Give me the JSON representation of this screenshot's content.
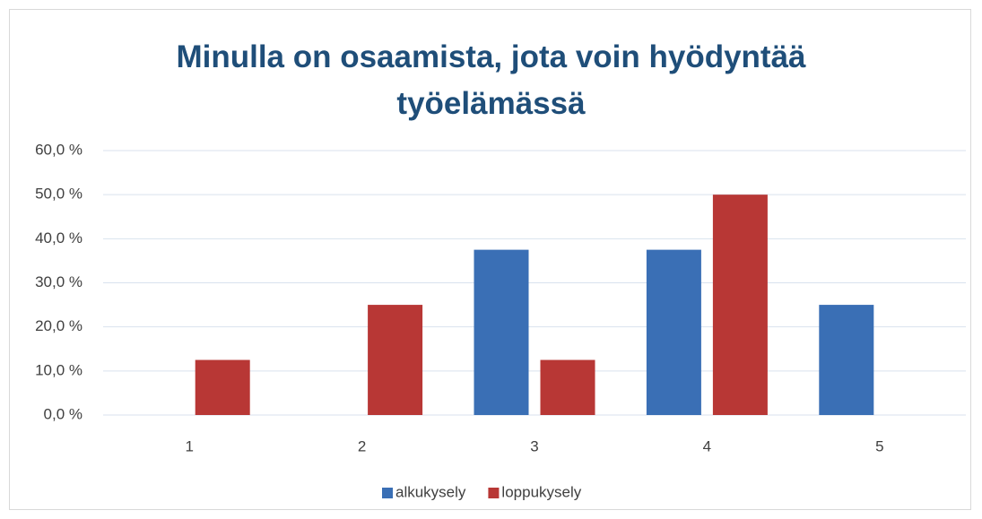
{
  "chart_data": {
    "type": "bar",
    "title": "Minulla on osaamista, jota voin hyödyntää työelämässä",
    "categories": [
      "1",
      "2",
      "3",
      "4",
      "5"
    ],
    "series": [
      {
        "name": "alkukysely",
        "color": "#3a6fb5",
        "values": [
          0,
          0,
          37.5,
          37.5,
          25
        ]
      },
      {
        "name": "loppukysely",
        "color": "#b83735",
        "values": [
          12.5,
          25,
          12.5,
          50,
          0
        ]
      }
    ],
    "ylim": [
      0,
      60
    ],
    "yticks": [
      {
        "value": 0,
        "label": "0,0 %"
      },
      {
        "value": 10,
        "label": "10,0 %"
      },
      {
        "value": 20,
        "label": "20,0 %"
      },
      {
        "value": 30,
        "label": "30,0 %"
      },
      {
        "value": 40,
        "label": "40,0 %"
      },
      {
        "value": 50,
        "label": "50,0 %"
      },
      {
        "value": 60,
        "label": "60,0 %"
      }
    ],
    "grid": true,
    "legend": "bottom"
  }
}
